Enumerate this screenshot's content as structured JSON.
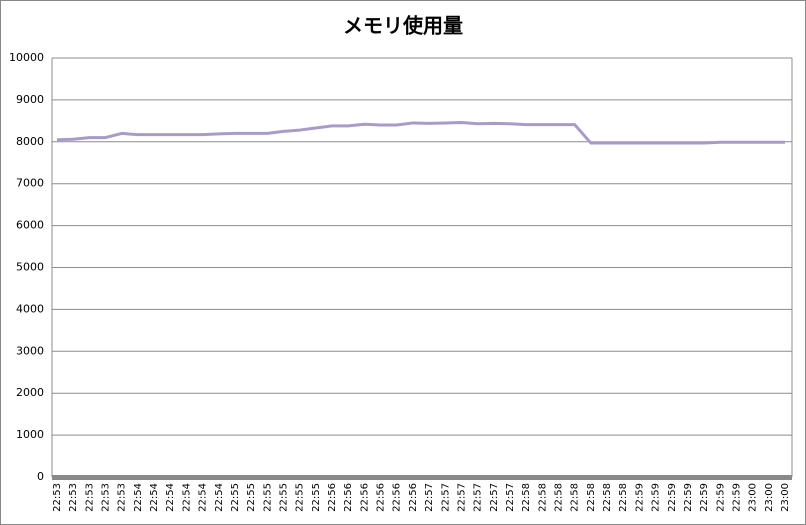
{
  "chart_data": {
    "type": "line",
    "title": "メモリ使用量",
    "categories": [
      "22:53",
      "22:53",
      "22:53",
      "22:53",
      "22:53",
      "22:54",
      "22:54",
      "22:54",
      "22:54",
      "22:54",
      "22:54",
      "22:55",
      "22:55",
      "22:55",
      "22:55",
      "22:55",
      "22:55",
      "22:56",
      "22:56",
      "22:56",
      "22:56",
      "22:56",
      "22:56",
      "22:57",
      "22:57",
      "22:57",
      "22:57",
      "22:57",
      "22:57",
      "22:58",
      "22:58",
      "22:58",
      "22:58",
      "22:58",
      "22:58",
      "22:58",
      "22:59",
      "22:59",
      "22:59",
      "22:59",
      "22:59",
      "22:59",
      "22:59",
      "23:00",
      "23:00",
      "23:00"
    ],
    "series": [
      {
        "name": "メモリ使用量",
        "color": "#a99bc7",
        "values": [
          8050,
          8060,
          8100,
          8100,
          8200,
          8170,
          8170,
          8170,
          8170,
          8170,
          8190,
          8200,
          8200,
          8200,
          8250,
          8280,
          8330,
          8380,
          8380,
          8420,
          8400,
          8400,
          8450,
          8440,
          8450,
          8460,
          8430,
          8440,
          8430,
          8410,
          8410,
          8410,
          8410,
          7970,
          7970,
          7970,
          7970,
          7970,
          7970,
          7970,
          7970,
          7990,
          7990,
          7990,
          7990,
          7990
        ]
      }
    ],
    "ylim": [
      0,
      10000
    ],
    "yticks": [
      0,
      1000,
      2000,
      3000,
      4000,
      5000,
      6000,
      7000,
      8000,
      9000,
      10000
    ],
    "grid": true
  }
}
